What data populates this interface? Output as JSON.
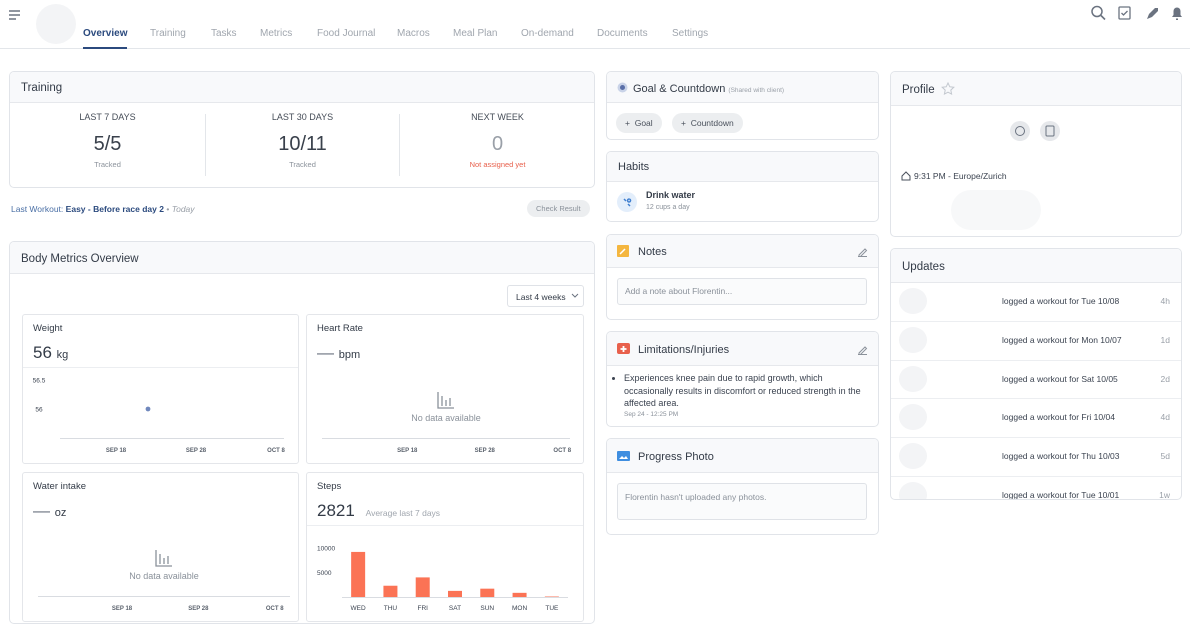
{
  "nav": {
    "tabs": [
      "Overview",
      "Training",
      "Tasks",
      "Metrics",
      "Food Journal",
      "Macros",
      "Meal Plan",
      "On-demand",
      "Documents",
      "Settings"
    ],
    "active": 0
  },
  "training": {
    "title": "Training",
    "stats": [
      {
        "label": "LAST 7 DAYS",
        "value": "5/5",
        "note": "Tracked"
      },
      {
        "label": "LAST 30 DAYS",
        "value": "10/11",
        "note": "Tracked"
      },
      {
        "label": "NEXT WEEK",
        "value": "0",
        "note": "Not assigned yet"
      }
    ],
    "last_workout": {
      "label": "Last Workout:",
      "name": "Easy - Before race day 2",
      "separator": "•",
      "when": "Today"
    },
    "button": "Check Result"
  },
  "body_metrics": {
    "title": "Body Metrics Overview",
    "range": "Last 4 weeks",
    "panels": [
      {
        "title": "Weight",
        "value": 56,
        "unit": "kg"
      },
      {
        "title": "Heart Rate",
        "value": "—",
        "unit": "bpm"
      },
      {
        "title": "Water intake",
        "value": "—",
        "unit": "oz"
      },
      {
        "title": "Steps",
        "value": 2821,
        "note": "Average last 7 days"
      }
    ]
  },
  "chart_data": [
    {
      "type": "scatter",
      "x": [
        "SEP 22"
      ],
      "values": [
        56
      ],
      "xlim": [
        "SEP 11",
        "OCT 9"
      ],
      "xticks": [
        "SEP 18",
        "SEP 28",
        "OCT 8"
      ],
      "ylim": [
        55.5,
        56.5
      ],
      "yticks": [
        56.5,
        56
      ],
      "color": "#7088bd"
    },
    {
      "type": "line",
      "xlim": [
        "SEP 7",
        "OCT 9"
      ],
      "xticks": [
        "SEP 18",
        "SEP 28",
        "OCT 8"
      ],
      "note": "No data available"
    },
    {
      "type": "line",
      "xlim": [
        "SEP 7",
        "OCT 10"
      ],
      "xticks": [
        "SEP 18",
        "SEP 28",
        "OCT 8"
      ],
      "note": "No data available"
    },
    {
      "type": "bar",
      "categories": [
        "WED",
        "THU",
        "FRI",
        "SAT",
        "SUN",
        "MON",
        "TUE"
      ],
      "values": [
        9200,
        2300,
        4000,
        1250,
        1700,
        850,
        100
      ],
      "ylim": [
        0,
        10000
      ],
      "yticks": [
        10000,
        5000
      ],
      "color": "#fb7355"
    }
  ],
  "goal": {
    "title": "Goal & Countdown",
    "subtitle": "(Shared with client)",
    "buttons": [
      {
        "icon": "+",
        "label": "Goal"
      },
      {
        "icon": "+",
        "label": "Countdown"
      }
    ]
  },
  "habits": {
    "title": "Habits",
    "items": [
      {
        "name": "Drink water",
        "detail": "12 cups a day"
      }
    ]
  },
  "notes": {
    "title": "Notes",
    "placeholder": "Add a note about Florentin..."
  },
  "limitations": {
    "title": "Limitations/Injuries",
    "items": [
      {
        "text": "Experiences knee pain due to rapid growth, which occasionally results in discomfort or reduced strength in the affected area.",
        "date": "Sep 24 - 12:25 PM"
      }
    ]
  },
  "progress_photo": {
    "title": "Progress Photo",
    "empty": "Florentin hasn't uploaded any photos."
  },
  "profile": {
    "title": "Profile",
    "local_time": "9:31 PM - Europe/Zurich"
  },
  "updates": {
    "title": "Updates",
    "items": [
      {
        "text": "logged a workout for Tue 10/08",
        "ago": "4h"
      },
      {
        "text": "logged a workout for Mon 10/07",
        "ago": "1d"
      },
      {
        "text": "logged a workout for Sat 10/05",
        "ago": "2d"
      },
      {
        "text": "logged a workout for Fri 10/04",
        "ago": "4d"
      },
      {
        "text": "logged a workout for Thu 10/03",
        "ago": "5d"
      },
      {
        "text": "logged a workout for Tue 10/01",
        "ago": "1w"
      }
    ]
  }
}
